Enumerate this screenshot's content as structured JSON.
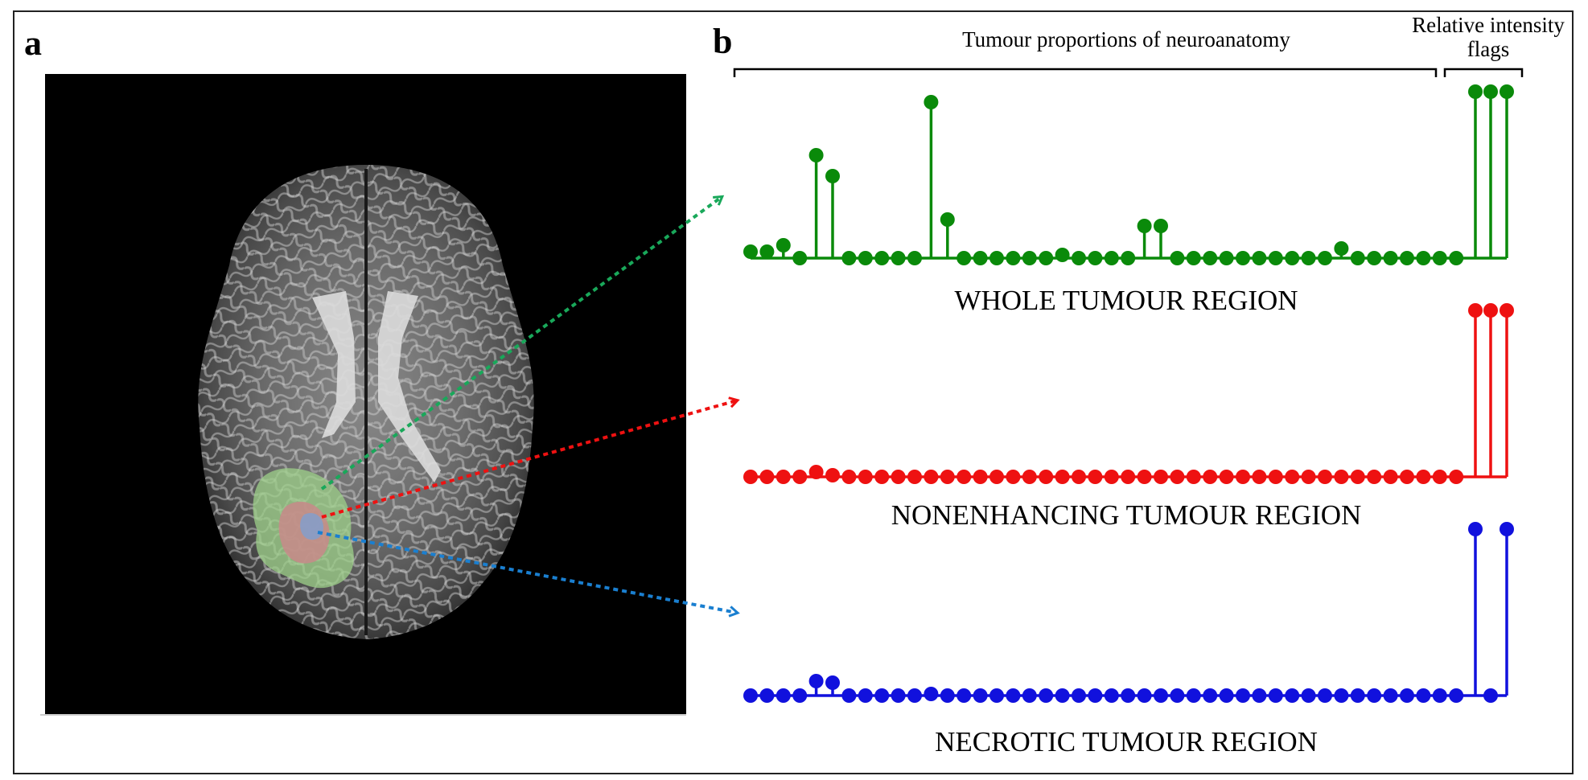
{
  "panel_labels": {
    "a": "a",
    "b": "b"
  },
  "headers": {
    "tumour_proportions": "Tumour proportions of neuroanatomy",
    "relative_intensity_line1": "Relative intensity",
    "relative_intensity_line2": "flags"
  },
  "colors": {
    "whole": "#0a8a0a",
    "nonenhancing": "#ee1111",
    "necrotic": "#1111dd",
    "arrow_whole": "#19a85a",
    "arrow_nonenhancing": "#ee1111",
    "arrow_necrotic": "#1a7fd0",
    "overlay_whole": "#9ed08a",
    "overlay_nonenhancing": "#c88a8a",
    "overlay_necrotic": "#7f9fcf"
  },
  "chart_data": [
    {
      "type": "stem",
      "title": "WHOLE TUMOUR REGION",
      "group": "Tumour proportions of neuroanatomy",
      "values": [
        0.04,
        0.04,
        0.08,
        0,
        0.64,
        0.51,
        0,
        0,
        0,
        0,
        0,
        0.97,
        0.24,
        0,
        0,
        0,
        0,
        0,
        0,
        0.02,
        0,
        0,
        0,
        0,
        0.2,
        0.2,
        0,
        0,
        0,
        0,
        0,
        0,
        0,
        0,
        0,
        0,
        0.06,
        0,
        0,
        0,
        0,
        0,
        0,
        0
      ],
      "flags": [
        1,
        1,
        1
      ]
    },
    {
      "type": "stem",
      "title": "NONENHANCING TUMOUR REGION",
      "group": "Tumour proportions of neuroanatomy",
      "values": [
        0,
        0,
        0,
        0,
        0.03,
        0.01,
        0,
        0,
        0,
        0,
        0,
        0,
        0,
        0,
        0,
        0,
        0,
        0,
        0,
        0,
        0,
        0,
        0,
        0,
        0,
        0,
        0,
        0,
        0,
        0,
        0,
        0,
        0,
        0,
        0,
        0,
        0,
        0,
        0,
        0,
        0,
        0,
        0,
        0
      ],
      "flags": [
        1,
        1,
        1
      ]
    },
    {
      "type": "stem",
      "title": "NECROTIC TUMOUR REGION",
      "group": "Tumour proportions of neuroanatomy",
      "values": [
        0,
        0,
        0,
        0,
        0.09,
        0.08,
        0,
        0,
        0,
        0,
        0,
        0.01,
        0,
        0,
        0,
        0,
        0,
        0,
        0,
        0,
        0,
        0,
        0,
        0,
        0,
        0,
        0,
        0,
        0,
        0,
        0,
        0,
        0,
        0,
        0,
        0,
        0,
        0,
        0,
        0,
        0,
        0,
        0,
        0
      ],
      "flags": [
        1,
        0,
        1
      ]
    }
  ]
}
